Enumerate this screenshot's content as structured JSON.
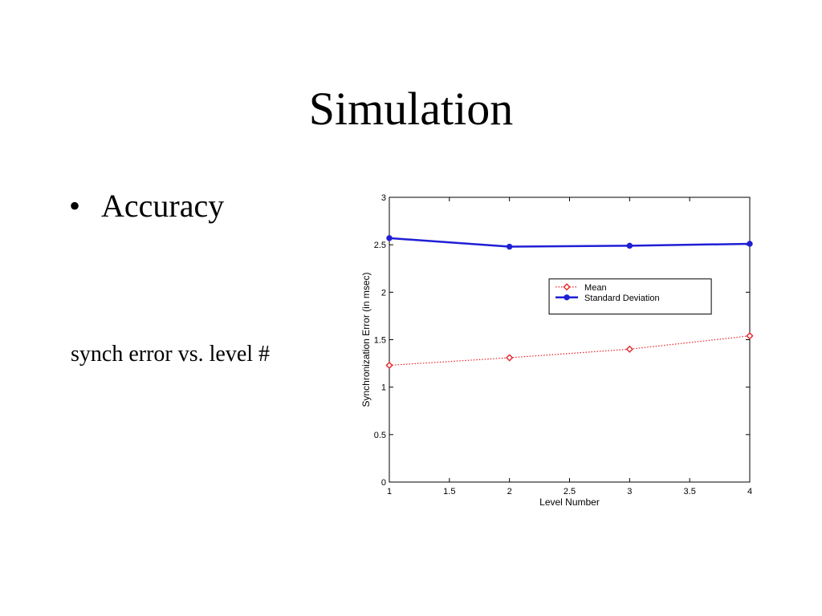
{
  "slide": {
    "title": "Simulation",
    "bullet_symbol": "•",
    "bullet_text": "Accuracy",
    "caption": "synch error vs. level #"
  },
  "colors": {
    "mean": "#e8242a",
    "standard_deviation": "#1f1fd6",
    "axis": "#000000"
  },
  "chart_data": {
    "type": "line",
    "title": "",
    "xlabel": "Level Number",
    "ylabel": "Synchronization Error  (in msec)",
    "xlim": [
      1,
      4
    ],
    "ylim": [
      0,
      3
    ],
    "x": [
      1,
      2,
      3,
      4
    ],
    "xticks": [
      "1",
      "1.5",
      "2",
      "2.5",
      "3",
      "3.5",
      "4"
    ],
    "xtick_values": [
      1,
      1.5,
      2,
      2.5,
      3,
      3.5,
      4
    ],
    "yticks": [
      "0",
      "0.5",
      "1",
      "1.5",
      "2",
      "2.5",
      "3"
    ],
    "ytick_values": [
      0,
      0.5,
      1,
      1.5,
      2,
      2.5,
      3
    ],
    "grid": false,
    "legend_position": "right",
    "series": [
      {
        "name": "Mean",
        "values": [
          1.23,
          1.31,
          1.4,
          1.54
        ],
        "line_style": "dotted",
        "marker": "diamond"
      },
      {
        "name": "Standard Deviation",
        "values": [
          2.57,
          2.48,
          2.49,
          2.51
        ],
        "line_style": "solid",
        "marker": "circle"
      }
    ]
  }
}
